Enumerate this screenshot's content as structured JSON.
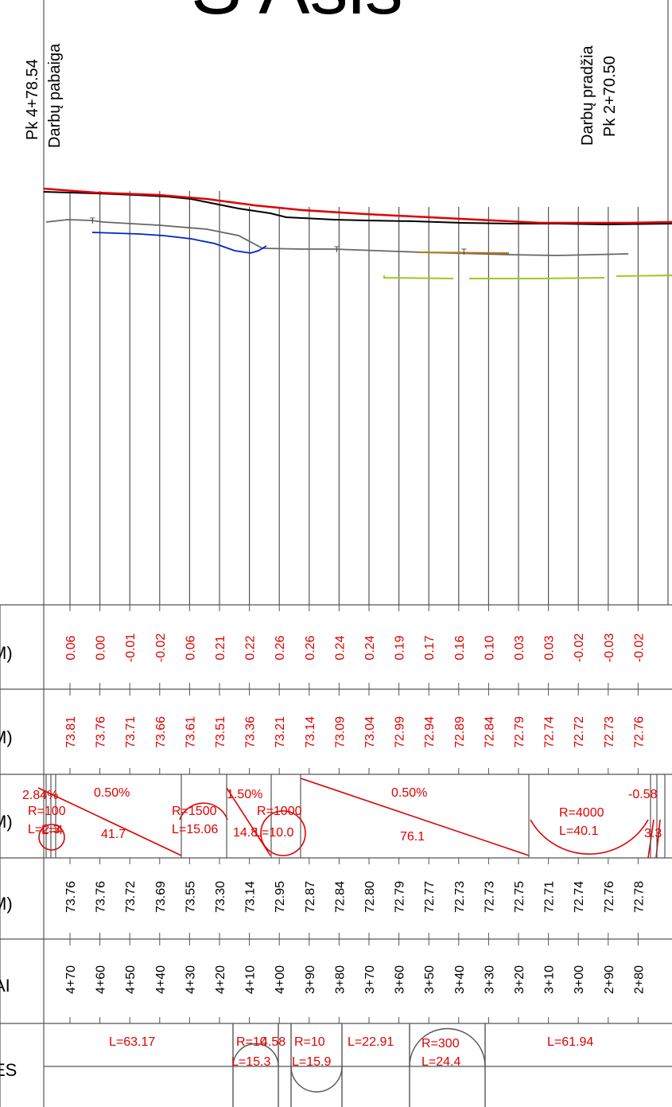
{
  "header": {
    "title": "S Ašis",
    "end_station": "Pk 4+78.54",
    "end_note": "Darbų pabaiga",
    "start_note": "Darbų pradžia",
    "start_station": "Pk 2+70.50"
  },
  "band_labels": {
    "diff": "M)",
    "design": "M)",
    "profile": "M)",
    "ground": "M)",
    "stations": "AI",
    "plan": "ES"
  },
  "colors": {
    "line": "#555555",
    "design_line": "#e00000",
    "ground_line": "#000000",
    "utility_blue": "#0022cc",
    "utility_grey": "#666666",
    "utility_green": "#99cc22",
    "utility_brown": "#b07a1a",
    "text_red": "#e00000"
  },
  "bands": {
    "diff_values": [
      "0.06",
      "0.00",
      "-0.01",
      "-0.02",
      "0.06",
      "0.21",
      "0.22",
      "0.26",
      "0.26",
      "0.24",
      "0.24",
      "0.19",
      "0.17",
      "0.16",
      "0.10",
      "0.03",
      "0.03",
      "-0.02",
      "-0.03",
      "-0.02"
    ],
    "design_elevations": [
      "73.81",
      "73.76",
      "73.71",
      "73.66",
      "73.61",
      "73.51",
      "73.36",
      "73.21",
      "73.14",
      "73.09",
      "73.04",
      "72.99",
      "72.94",
      "72.89",
      "72.84",
      "72.79",
      "72.74",
      "72.72",
      "72.73",
      "72.76"
    ],
    "ground_elevations": [
      "73.76",
      "73.76",
      "73.72",
      "73.69",
      "73.55",
      "73.30",
      "73.14",
      "72.95",
      "72.87",
      "72.84",
      "72.80",
      "72.79",
      "72.77",
      "72.73",
      "72.73",
      "72.75",
      "72.71",
      "72.74",
      "72.76",
      "72.78"
    ],
    "stations": [
      "4+70",
      "4+60",
      "4+50",
      "4+40",
      "4+30",
      "4+20",
      "4+10",
      "4+00",
      "3+90",
      "3+80",
      "3+70",
      "3+60",
      "3+50",
      "3+40",
      "3+30",
      "3+20",
      "3+10",
      "3+00",
      "2+90",
      "2+80"
    ]
  },
  "profile_grade": [
    {
      "text": "2.84%"
    },
    {
      "text": "R=100"
    },
    {
      "text": "L=2.3"
    },
    {
      "text": "L=4"
    },
    {
      "text": "0.50%"
    },
    {
      "text": "41.7"
    },
    {
      "text": "R=1500"
    },
    {
      "text": "L=15.06"
    },
    {
      "text": "1.50%"
    },
    {
      "text": "14.8"
    },
    {
      "text": "R=1000"
    },
    {
      "text": "L=10.0"
    },
    {
      "text": "0.50%"
    },
    {
      "text": "76.1"
    },
    {
      "text": "R=4000"
    },
    {
      "text": "L=40.1"
    },
    {
      "text": "-0.58"
    },
    {
      "text": "3.3"
    }
  ],
  "plan_elements": [
    {
      "text": "L=63.17"
    },
    {
      "text": "R=10"
    },
    {
      "text": "4.58"
    },
    {
      "text": "R=10"
    },
    {
      "text": "L=15.3"
    },
    {
      "text": "L=15.9"
    },
    {
      "text": "L=22.91"
    },
    {
      "text": "R=300"
    },
    {
      "text": "L=24.4"
    },
    {
      "text": "L=61.94"
    }
  ]
}
